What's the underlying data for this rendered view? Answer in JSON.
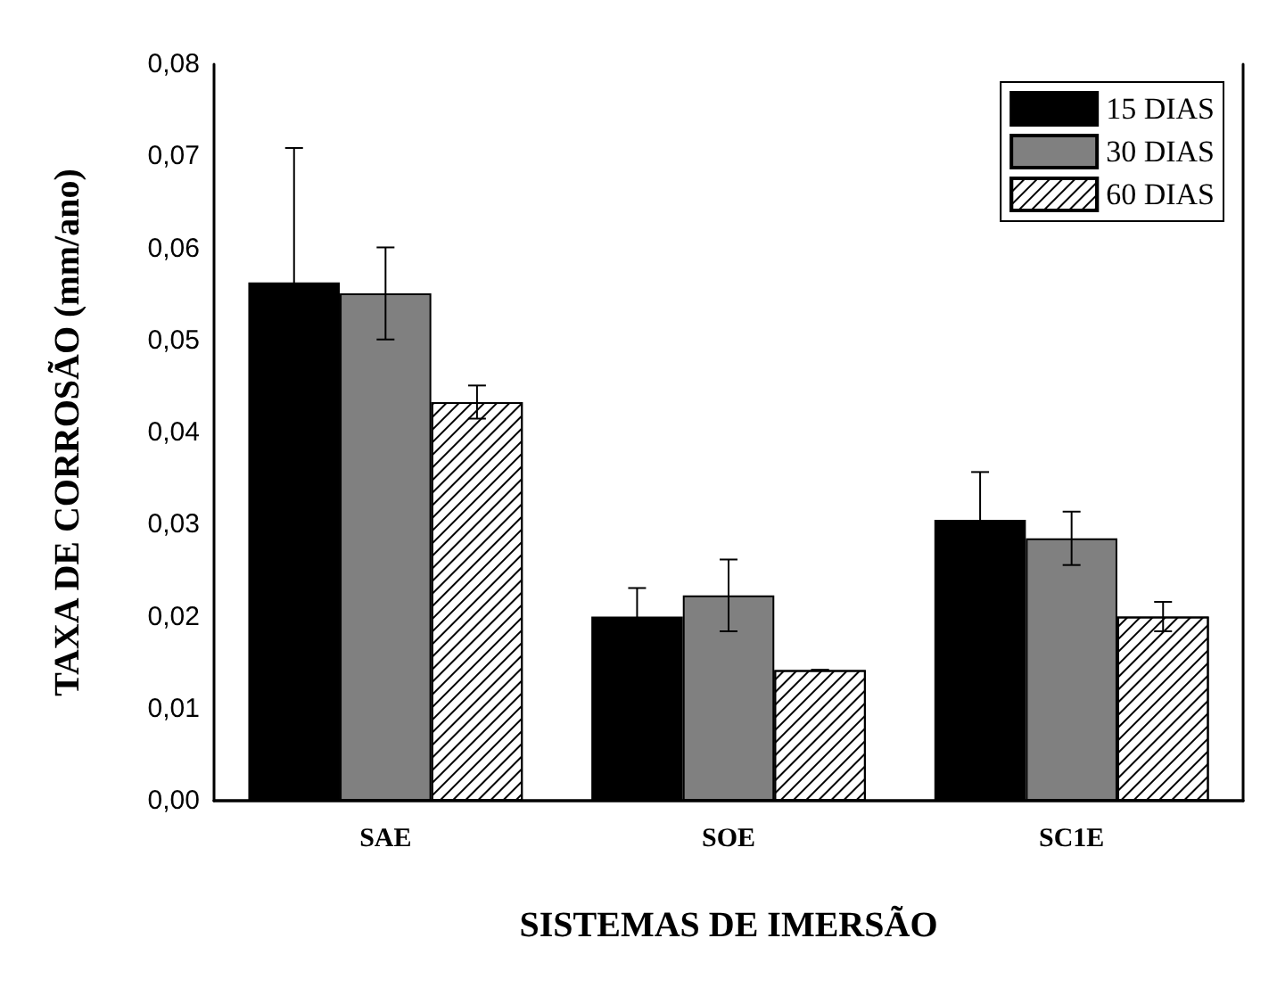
{
  "chart_data": {
    "type": "bar",
    "xlabel": "SISTEMAS DE IMERSÃO",
    "ylabel": "TAXA DE CORROSÃO (mm/ano)",
    "categories": [
      "SAE",
      "SOE",
      "SC1E"
    ],
    "series": [
      {
        "name": "15 DIAS",
        "color": "#000000",
        "values": [
          0.0563,
          0.02,
          0.0305
        ],
        "errors": [
          0.0146,
          0.0031,
          0.0052
        ]
      },
      {
        "name": "30 DIAS",
        "color": "#808080",
        "values": [
          0.0551,
          0.0223,
          0.0285
        ],
        "errors": [
          0.005,
          0.0039,
          0.0029
        ]
      },
      {
        "name": "60 DIAS",
        "color": "#ffffff",
        "values": [
          0.0433,
          0.0142,
          0.02
        ],
        "errors": [
          0.0018,
          0,
          0.0016
        ]
      }
    ],
    "ylim": [
      0,
      0.08
    ],
    "yticks": [
      {
        "value": 0,
        "label": "0,00"
      },
      {
        "value": 0.01,
        "label": "0,01"
      },
      {
        "value": 0.02,
        "label": "0,02"
      },
      {
        "value": 0.03,
        "label": "0,03"
      },
      {
        "value": 0.04,
        "label": "0,04"
      },
      {
        "value": 0.05,
        "label": "0,05"
      },
      {
        "value": 0.06,
        "label": "0,06"
      },
      {
        "value": 0.07,
        "label": "0,07"
      },
      {
        "value": 0.08,
        "label": "0,08"
      }
    ],
    "grid": false,
    "legend": "top right"
  }
}
